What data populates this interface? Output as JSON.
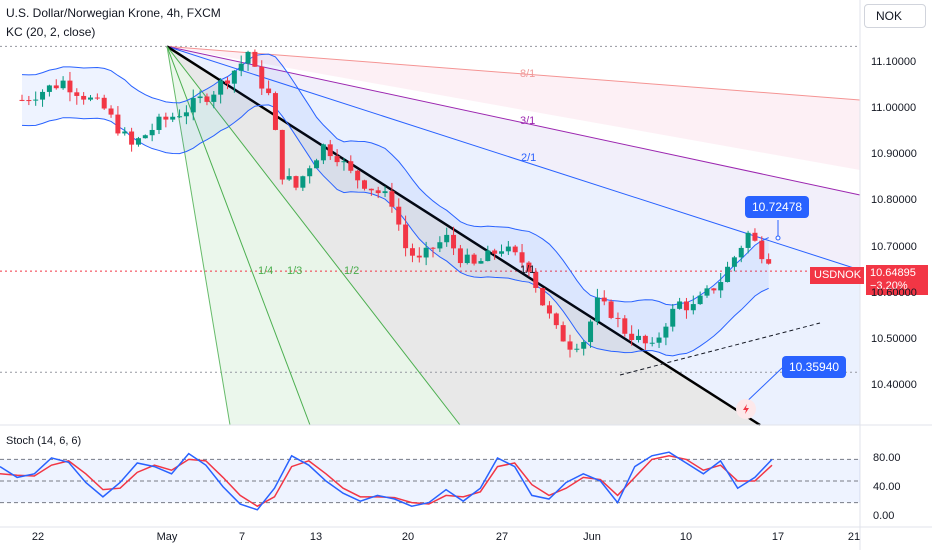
{
  "header": {
    "title": "U.S. Dollar/Norwegian Krone, 4h, FXCM",
    "indicator": "KC (20, 2, close)",
    "currency_button": "NOK"
  },
  "stoch": {
    "label": "Stoch (14, 6, 6)",
    "yticks": [
      "80.00",
      "40.00",
      "0.00"
    ]
  },
  "price_tag": {
    "symbol": "USDNOK",
    "price": "10.64895",
    "change": "−3.20%"
  },
  "callouts": {
    "upper": "10.72478",
    "lower": "10.35940"
  },
  "fan_labels": {
    "a": "1/4",
    "b": "1/3",
    "c": "1/2",
    "d": "1/1",
    "e": "2/1",
    "f": "3/1",
    "g": "8/1"
  },
  "colors": {
    "up": "#089981",
    "down": "#f23645",
    "channel": "#2962ff",
    "stoch_k": "#2962ff",
    "stoch_d": "#f23645",
    "price_tag": "#f23645",
    "callout": "#2962ff",
    "fan_line": "#000000"
  },
  "chart_data": {
    "type": "candlestick",
    "title": "U.S. Dollar/Norwegian Krone, 4h, FXCM",
    "x_tick_labels": [
      "22",
      "May",
      "7",
      "13",
      "20",
      "27",
      "Jun",
      "10",
      "17",
      "21"
    ],
    "y_tick_labels": [
      "11.10000",
      "11.00000",
      "10.90000",
      "10.80000",
      "10.70000",
      "10.60000",
      "10.50000",
      "10.40000"
    ],
    "ylim": [
      10.33,
      11.18
    ],
    "last_price": 10.64895,
    "change_pct": -3.2,
    "key_levels": [
      11.136,
      10.645,
      10.43
    ],
    "callout_levels": [
      10.72478,
      10.3594
    ],
    "close_path": [
      [
        0,
        11.02
      ],
      [
        3,
        11.06
      ],
      [
        6,
        11.0
      ],
      [
        8,
        10.92
      ],
      [
        10,
        10.97
      ],
      [
        12,
        11.0
      ],
      [
        14,
        11.04
      ],
      [
        16,
        11.1
      ],
      [
        16.6,
        11.13
      ],
      [
        17,
        11.08
      ],
      [
        18,
        11.03
      ],
      [
        19,
        10.86
      ],
      [
        20,
        10.83
      ],
      [
        21,
        10.88
      ],
      [
        22,
        10.92
      ],
      [
        23,
        10.9
      ],
      [
        24,
        10.86
      ],
      [
        25,
        10.84
      ],
      [
        26,
        10.82
      ],
      [
        27,
        10.8
      ],
      [
        28,
        10.7
      ],
      [
        29,
        10.67
      ],
      [
        30,
        10.7
      ],
      [
        31,
        10.72
      ],
      [
        32,
        10.68
      ],
      [
        33,
        10.66
      ],
      [
        34,
        10.68
      ],
      [
        35,
        10.7
      ],
      [
        36,
        10.68
      ],
      [
        37,
        10.66
      ],
      [
        38,
        10.58
      ],
      [
        39,
        10.52
      ],
      [
        40,
        10.49
      ],
      [
        41,
        10.5
      ],
      [
        42,
        10.58
      ],
      [
        43,
        10.56
      ],
      [
        44,
        10.52
      ],
      [
        45,
        10.5
      ],
      [
        46,
        10.48
      ],
      [
        47,
        10.54
      ],
      [
        48,
        10.58
      ],
      [
        49,
        10.57
      ],
      [
        50,
        10.6
      ],
      [
        51,
        10.63
      ],
      [
        52,
        10.68
      ],
      [
        53,
        10.73
      ],
      [
        54,
        10.69
      ],
      [
        55,
        10.67
      ],
      [
        56,
        10.7
      ],
      [
        57,
        10.5
      ],
      [
        58,
        10.56
      ],
      [
        59,
        10.62
      ],
      [
        60,
        10.65
      ]
    ],
    "x_scale_note": "x index 0 = Apr 19, one unit = one trading day; Apr 22 = 2, May 1 = 9, Jun 3 = 32, Jun 17 = 42 in calendar terms",
    "stochastic": {
      "name": "Stoch (14, 6, 6)",
      "ylim": [
        0,
        100
      ],
      "levels": [
        80,
        50,
        20
      ],
      "k": [
        70,
        55,
        60,
        82,
        76,
        48,
        28,
        48,
        75,
        70,
        60,
        88,
        72,
        42,
        18,
        10,
        40,
        85,
        72,
        50,
        33,
        22,
        30,
        25,
        15,
        20,
        38,
        22,
        40,
        82,
        70,
        30,
        25,
        48,
        60,
        50,
        20,
        70,
        85,
        90,
        75,
        60,
        78,
        40,
        55,
        80
      ],
      "d": [
        60,
        58,
        57,
        72,
        78,
        60,
        38,
        40,
        62,
        72,
        65,
        80,
        78,
        55,
        30,
        15,
        28,
        70,
        78,
        60,
        40,
        28,
        28,
        27,
        20,
        18,
        30,
        28,
        35,
        70,
        75,
        45,
        30,
        40,
        55,
        52,
        30,
        55,
        80,
        85,
        80,
        65,
        72,
        50,
        50,
        72
      ]
    }
  }
}
